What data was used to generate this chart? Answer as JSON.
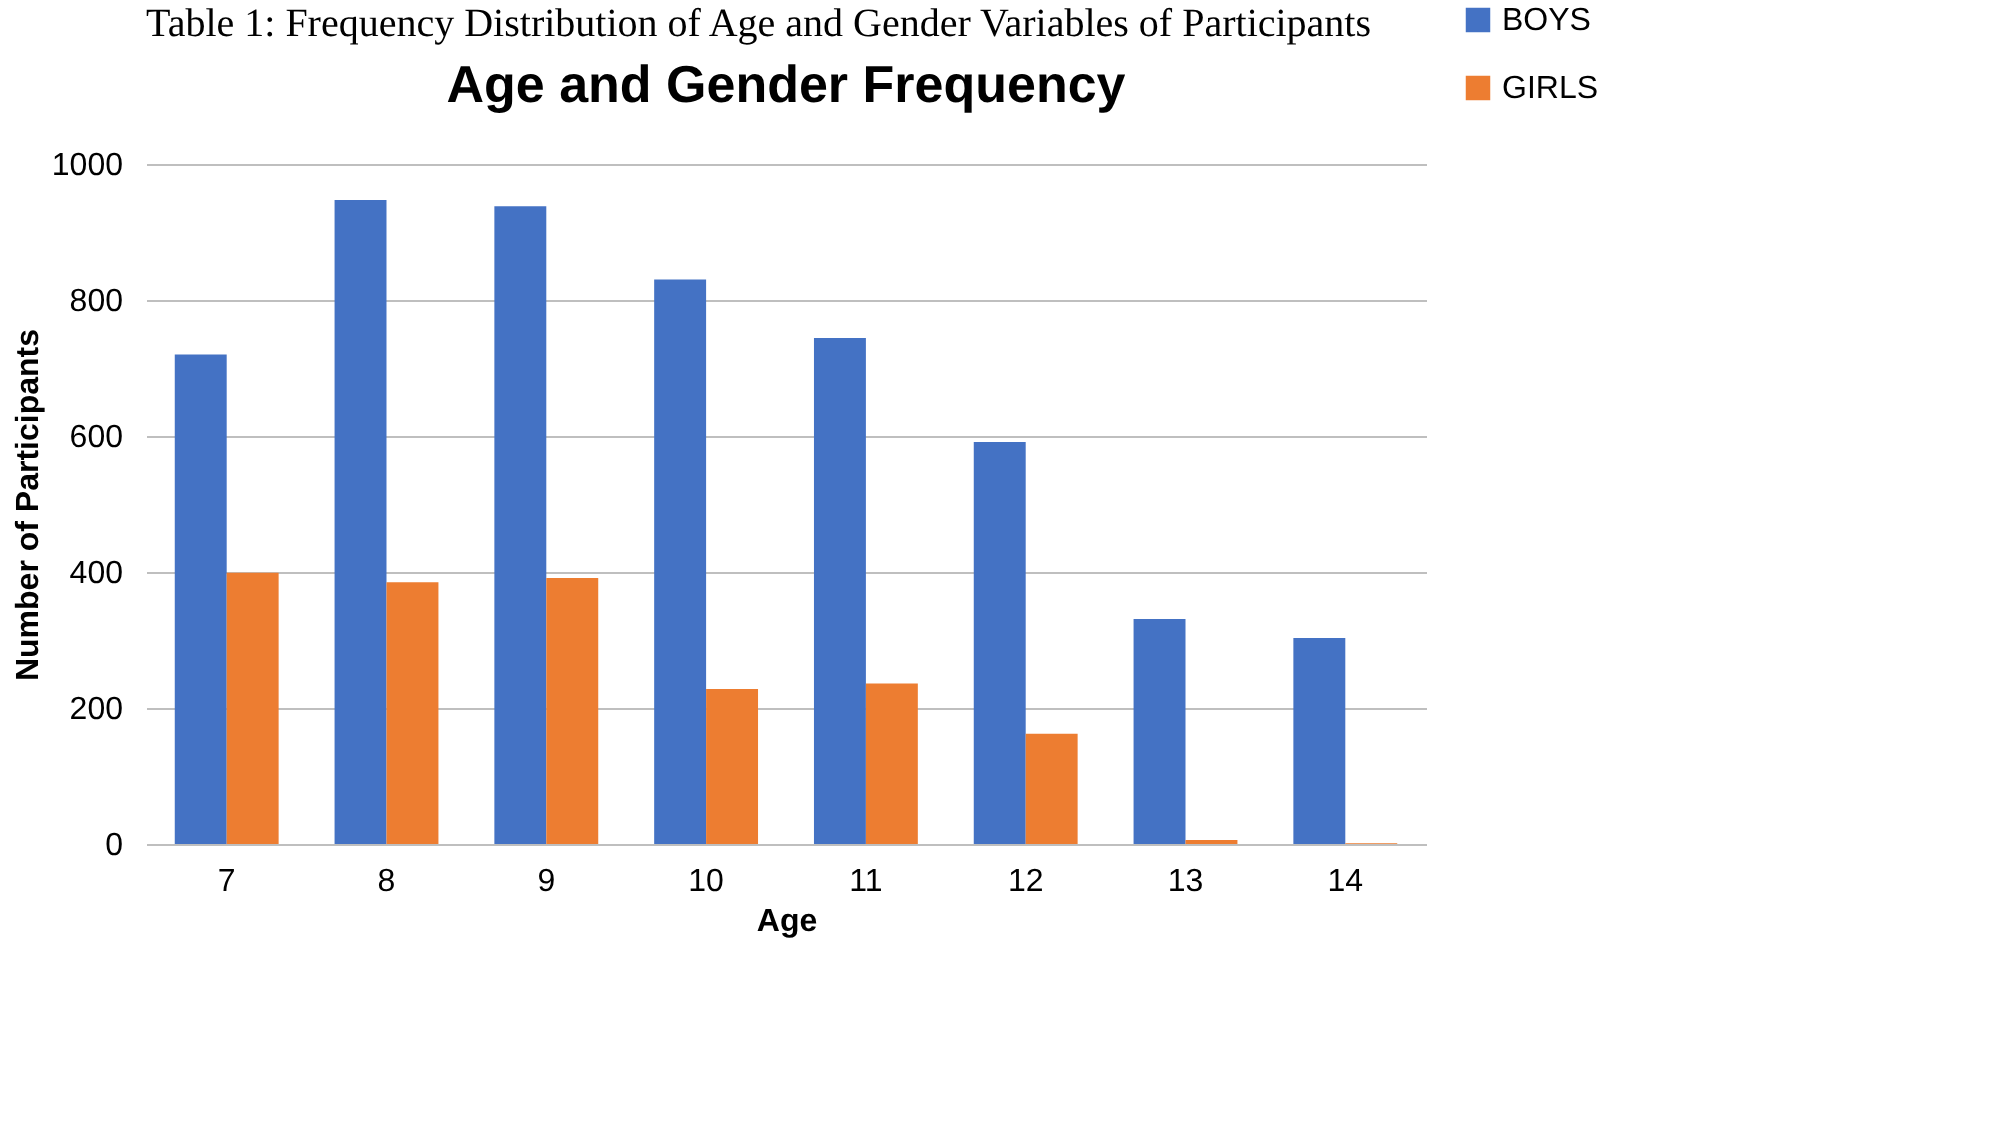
{
  "chart_data": {
    "type": "bar",
    "title": "Age and Gender Frequency",
    "xlabel": "Age",
    "ylabel": "Number of Participants",
    "annotations": [
      "Table 1: Frequency Distribution of Age and Gender Variables of Participants"
    ],
    "categories": [
      "7",
      "8",
      "9",
      "10",
      "11",
      "12",
      "13",
      "14"
    ],
    "series": [
      {
        "name": "BOYS",
        "color": "#4472c4",
        "values": [
          720,
          947,
          938,
          830,
          744,
          591,
          331,
          303
        ]
      },
      {
        "name": "GIRLS",
        "color": "#ed7d31",
        "values": [
          399,
          385,
          391,
          228,
          236,
          162,
          6,
          1
        ]
      }
    ],
    "ylim": [
      0,
      1000
    ],
    "yticks": [
      0,
      200,
      400,
      600,
      800,
      1000
    ],
    "grid": "y",
    "legend": "top right"
  }
}
